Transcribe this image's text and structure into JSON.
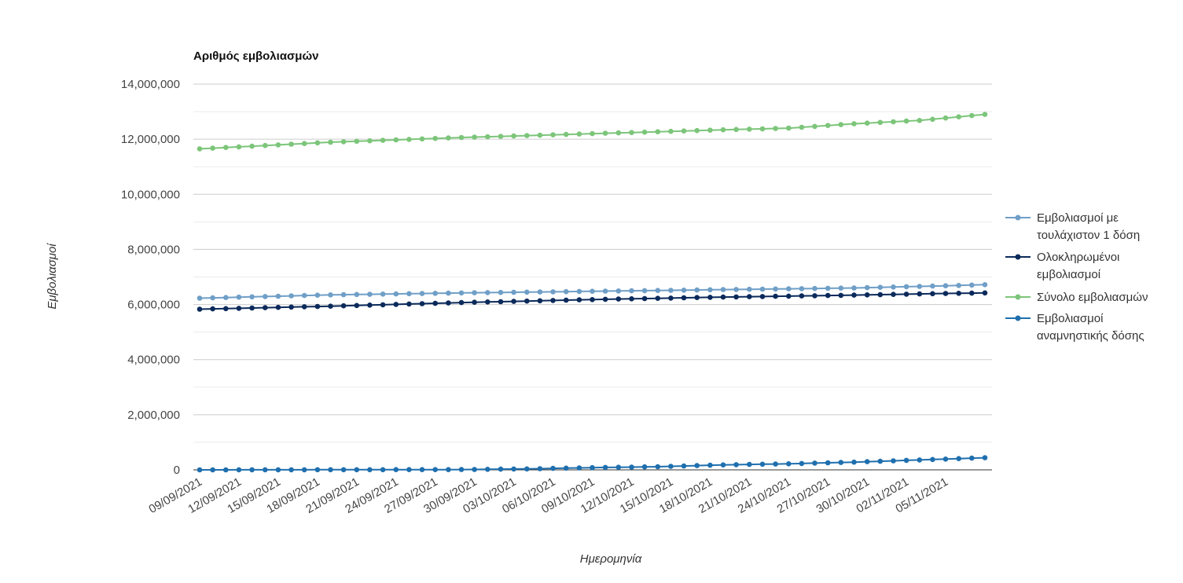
{
  "chart_data": {
    "type": "line",
    "title": "Αριθμός εμβολιασμών",
    "xlabel": "Ημερομηνία",
    "ylabel": "Εμβολιασμοί",
    "ylim": [
      0,
      14000000
    ],
    "y_ticks": [
      "0",
      "2,000,000",
      "4,000,000",
      "6,000,000",
      "8,000,000",
      "10,000,000",
      "12,000,000",
      "14,000,000"
    ],
    "x_tick_labels": [
      "09/09/2021",
      "12/09/2021",
      "15/09/2021",
      "18/09/2021",
      "21/09/2021",
      "24/09/2021",
      "27/09/2021",
      "30/09/2021",
      "03/10/2021",
      "06/10/2021",
      "09/10/2021",
      "12/10/2021",
      "15/10/2021",
      "18/10/2021",
      "21/10/2021",
      "24/10/2021",
      "27/10/2021",
      "30/10/2021",
      "02/11/2021",
      "05/11/2021"
    ],
    "x_start_date": "2021-09-09",
    "x_end_date": "2021-11-08",
    "grid": true,
    "legend_position": "right",
    "series": [
      {
        "name": "Εμβολιασμοί με τουλάχιστον 1 δόση",
        "color": "#6f9fc7",
        "keypoints": [
          [
            0,
            6230000
          ],
          [
            10,
            6350000
          ],
          [
            20,
            6420000
          ],
          [
            30,
            6480000
          ],
          [
            40,
            6540000
          ],
          [
            50,
            6600000
          ],
          [
            57,
            6680000
          ],
          [
            60,
            6720000
          ]
        ]
      },
      {
        "name": "Ολοκληρωμένοι εμβολιασμοί",
        "color": "#0b2a5b",
        "keypoints": [
          [
            0,
            5830000
          ],
          [
            10,
            5940000
          ],
          [
            20,
            6070000
          ],
          [
            30,
            6180000
          ],
          [
            40,
            6270000
          ],
          [
            50,
            6340000
          ],
          [
            57,
            6400000
          ],
          [
            60,
            6420000
          ]
        ]
      },
      {
        "name": "Σύνολο εμβολιασμών",
        "color": "#7cc57a",
        "keypoints": [
          [
            0,
            11650000
          ],
          [
            10,
            11890000
          ],
          [
            20,
            12060000
          ],
          [
            30,
            12200000
          ],
          [
            40,
            12340000
          ],
          [
            45,
            12400000
          ],
          [
            50,
            12560000
          ],
          [
            55,
            12680000
          ],
          [
            60,
            12900000
          ]
        ]
      },
      {
        "name": "Εμβολιασμοί αναμνηστικής δόσης",
        "color": "#1f6fae",
        "keypoints": [
          [
            0,
            0
          ],
          [
            20,
            10000
          ],
          [
            25,
            35000
          ],
          [
            30,
            80000
          ],
          [
            35,
            115000
          ],
          [
            40,
            180000
          ],
          [
            45,
            220000
          ],
          [
            50,
            280000
          ],
          [
            55,
            360000
          ],
          [
            60,
            440000
          ]
        ]
      }
    ]
  }
}
